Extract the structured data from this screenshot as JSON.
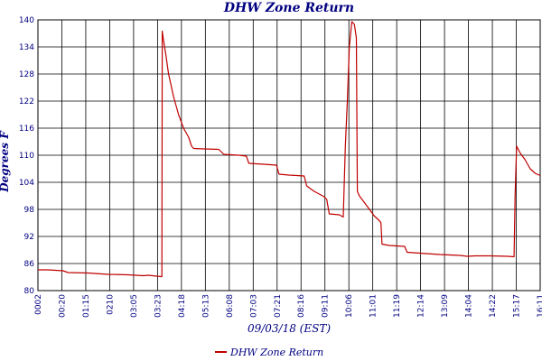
{
  "chart_data": {
    "type": "line",
    "title": "DHW Zone Return",
    "xlabel": "09/03/18 (EST)",
    "ylabel": "Degrees F",
    "ylim": [
      80,
      140
    ],
    "yticks": [
      80,
      86,
      92,
      98,
      104,
      110,
      116,
      122,
      128,
      134,
      140
    ],
    "x_tick_labels": [
      "0002",
      "00:20",
      "01:15",
      "0210",
      "03:05",
      "03:23",
      "04:18",
      "05:13",
      "06:08",
      "07:03",
      "07:21",
      "08:16",
      "09:11",
      "10:06",
      "11:01",
      "11:19",
      "12:14",
      "13:09",
      "14:04",
      "14:22",
      "15:17",
      "16:11"
    ],
    "grid": true,
    "legend_position": "bottom",
    "series": [
      {
        "name": "DHW Zone Return",
        "color": "#c00000",
        "points": [
          [
            0.0,
            84.6
          ],
          [
            0.02,
            84.6
          ],
          [
            0.05,
            84.4
          ],
          [
            0.06,
            84.0
          ],
          [
            0.1,
            83.9
          ],
          [
            0.14,
            83.6
          ],
          [
            0.18,
            83.5
          ],
          [
            0.21,
            83.3
          ],
          [
            0.22,
            83.4
          ],
          [
            0.245,
            83.1
          ],
          [
            0.2467,
            83.1
          ],
          [
            0.2475,
            137.5
          ],
          [
            0.25,
            135.5
          ],
          [
            0.255,
            132.0
          ],
          [
            0.26,
            128.0
          ],
          [
            0.27,
            123.0
          ],
          [
            0.28,
            119.0
          ],
          [
            0.29,
            116.0
          ],
          [
            0.3,
            114.0
          ],
          [
            0.306,
            112.0
          ],
          [
            0.31,
            111.5
          ],
          [
            0.33,
            111.4
          ],
          [
            0.36,
            111.3
          ],
          [
            0.37,
            110.2
          ],
          [
            0.4,
            110.0
          ],
          [
            0.415,
            109.8
          ],
          [
            0.42,
            108.2
          ],
          [
            0.45,
            108.0
          ],
          [
            0.475,
            107.8
          ],
          [
            0.48,
            105.8
          ],
          [
            0.5,
            105.6
          ],
          [
            0.53,
            105.4
          ],
          [
            0.535,
            103.2
          ],
          [
            0.55,
            102.0
          ],
          [
            0.57,
            100.8
          ],
          [
            0.575,
            100.2
          ],
          [
            0.58,
            97.0
          ],
          [
            0.6,
            96.8
          ],
          [
            0.608,
            96.3
          ],
          [
            0.612,
            112.0
          ],
          [
            0.616,
            122.0
          ],
          [
            0.62,
            134.0
          ],
          [
            0.625,
            139.6
          ],
          [
            0.63,
            139.0
          ],
          [
            0.634,
            136.0
          ],
          [
            0.636,
            102.0
          ],
          [
            0.64,
            101.0
          ],
          [
            0.65,
            99.5
          ],
          [
            0.66,
            98.0
          ],
          [
            0.67,
            96.5
          ],
          [
            0.68,
            95.5
          ],
          [
            0.683,
            95.0
          ],
          [
            0.685,
            90.3
          ],
          [
            0.7,
            90.0
          ],
          [
            0.73,
            89.8
          ],
          [
            0.735,
            88.5
          ],
          [
            0.76,
            88.3
          ],
          [
            0.8,
            88.0
          ],
          [
            0.84,
            87.8
          ],
          [
            0.855,
            87.6
          ],
          [
            0.87,
            87.7
          ],
          [
            0.9,
            87.7
          ],
          [
            0.935,
            87.6
          ],
          [
            0.948,
            87.5
          ],
          [
            0.95,
            101.0
          ],
          [
            0.953,
            112.0
          ],
          [
            0.96,
            110.5
          ],
          [
            0.97,
            109.0
          ],
          [
            0.98,
            107.0
          ],
          [
            0.99,
            106.0
          ],
          [
            1.0,
            105.5
          ]
        ]
      }
    ]
  }
}
